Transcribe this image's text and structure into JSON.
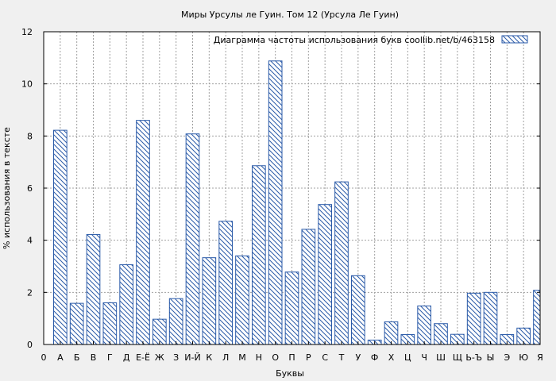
{
  "chart_data": {
    "type": "bar",
    "title": "Миры Урсулы ле Гуин. Том 12 (Урсула Ле Гуин)",
    "xlabel": "Буквы",
    "ylabel": "% использования в тексте",
    "legend": {
      "label": "Диаграмма частоты использования букв  coollib.net/b/463158",
      "placement": "top-right"
    },
    "ylim": [
      0,
      12
    ],
    "yticks": [
      0,
      2,
      4,
      6,
      8,
      10,
      12
    ],
    "grid": true,
    "colors": {
      "bar_stroke": "#2a5aa8",
      "hatch": "#2a5aa8",
      "bar_fill": "#ffffff",
      "plot_bg": "#ffffff",
      "page_bg": "#f0f0f0"
    },
    "categories": [
      "0",
      "А",
      "Б",
      "В",
      "Г",
      "Д",
      "Е-Ё",
      "Ж",
      "З",
      "И-Й",
      "К",
      "Л",
      "М",
      "Н",
      "О",
      "П",
      "Р",
      "С",
      "Т",
      "У",
      "Ф",
      "Х",
      "Ц",
      "Ч",
      "Ш",
      "Щ",
      "Ь-Ъ",
      "Ы",
      "Э",
      "Ю",
      "Я"
    ],
    "values": [
      0,
      8.22,
      1.58,
      4.22,
      1.6,
      3.06,
      8.6,
      0.97,
      1.76,
      8.08,
      3.33,
      4.73,
      3.4,
      6.86,
      10.88,
      2.78,
      4.42,
      5.37,
      6.24,
      2.64,
      0.17,
      0.87,
      0.38,
      1.48,
      0.8,
      0.39,
      1.97,
      2.0,
      0.38,
      0.63,
      2.08
    ]
  }
}
